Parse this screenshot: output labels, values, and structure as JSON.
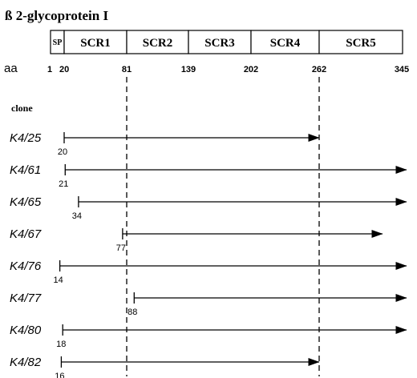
{
  "title": "ß 2-glycoprotein I",
  "aa_label": "aa",
  "clone_header": "clone",
  "domains": [
    {
      "label": "SP",
      "start": 1,
      "end": 20
    },
    {
      "label": "SCR1",
      "start": 20,
      "end": 81
    },
    {
      "label": "SCR2",
      "start": 81,
      "end": 139
    },
    {
      "label": "SCR3",
      "start": 139,
      "end": 202
    },
    {
      "label": "SCR4",
      "start": 202,
      "end": 262
    },
    {
      "label": "SCR5",
      "start": 262,
      "end": 345
    }
  ],
  "aa_ticks": [
    {
      "label": "1",
      "value": 1
    },
    {
      "label": "20",
      "value": 20
    },
    {
      "label": "81",
      "value": 81
    },
    {
      "label": "139",
      "value": 139
    },
    {
      "label": "202",
      "value": 202
    },
    {
      "label": "262",
      "value": 262
    },
    {
      "label": "345",
      "value": 345
    }
  ],
  "dashed_boundaries": [
    81,
    262
  ],
  "clones": [
    {
      "name": "K4/25",
      "start": 20,
      "start_label": "20",
      "end": 262,
      "extends_beyond": false
    },
    {
      "name": "K4/61",
      "start": 21,
      "start_label": "21",
      "end": 345,
      "extends_beyond": true
    },
    {
      "name": "K4/65",
      "start": 34,
      "start_label": "34",
      "end": 345,
      "extends_beyond": true
    },
    {
      "name": "K4/67",
      "start": 77,
      "start_label": "77",
      "end": 325,
      "extends_beyond": true
    },
    {
      "name": "K4/76",
      "start": 14,
      "start_label": "14",
      "end": 345,
      "extends_beyond": true
    },
    {
      "name": "K4/77",
      "start": 88,
      "start_label": "88",
      "end": 345,
      "extends_beyond": true
    },
    {
      "name": "K4/80",
      "start": 18,
      "start_label": "18",
      "end": 345,
      "extends_beyond": true
    },
    {
      "name": "K4/82",
      "start": 16,
      "start_label": "16",
      "end": 262,
      "extends_beyond": false
    }
  ]
}
